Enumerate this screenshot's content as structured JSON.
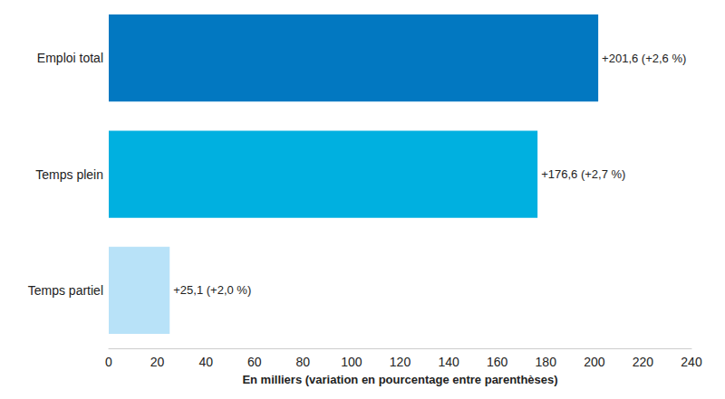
{
  "chart_data": {
    "type": "bar",
    "orientation": "horizontal",
    "categories": [
      "Emploi total",
      "Temps plein",
      "Temps partiel"
    ],
    "values": [
      201.6,
      176.6,
      25.1
    ],
    "value_labels": [
      "+201,6 (+2,6 %)",
      "+176,6 (+2,7 %)",
      "+25,1 (+2,0 %)"
    ],
    "colors": [
      "#0278c1",
      "#00b0e0",
      "#b8e2f8"
    ],
    "x_label": "En milliers (variation en pourcentage entre parenthèses)",
    "xlim": [
      0,
      240
    ],
    "xticks": [
      0,
      20,
      40,
      60,
      80,
      100,
      120,
      140,
      160,
      180,
      200,
      220,
      240
    ],
    "grid": false,
    "data_labels": true
  }
}
